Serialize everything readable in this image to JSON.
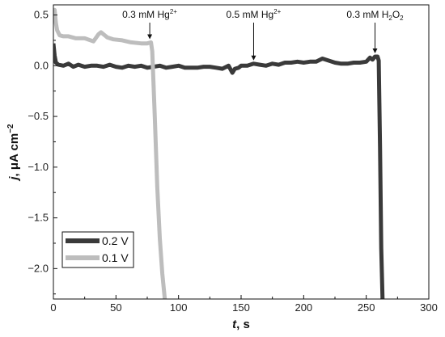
{
  "chart_data": {
    "type": "line",
    "xlabel": {
      "var": "t",
      "unit": ", s"
    },
    "ylabel": {
      "var": "j",
      "unit": ", μA cm",
      "sup": "−2"
    },
    "xlim": [
      0,
      300
    ],
    "ylim": [
      -2.3,
      0.6
    ],
    "xticks": [
      0,
      50,
      100,
      150,
      200,
      250,
      300
    ],
    "yticks": [
      0.5,
      0.0,
      -0.5,
      -1.0,
      -1.5,
      -2.0
    ],
    "ytick_labels": [
      "0.5",
      "0.0",
      "−0.5",
      "−1.0",
      "−1.5",
      "−2.0"
    ],
    "grid": false,
    "legend_position": "bottom-left",
    "annotations": [
      {
        "label": "0.3 mM Hg",
        "sup": "2+",
        "sub": "",
        "rest": "",
        "x": 77,
        "y": 0.23
      },
      {
        "label": "0.5 mM Hg",
        "sup": "2+",
        "sub": "",
        "rest": "",
        "x": 160,
        "y": 0.02
      },
      {
        "label": "0.3 mM H",
        "sup": "",
        "sub": "2",
        "rest": "O",
        "sub2": "2",
        "x": 257,
        "y": 0.09
      }
    ],
    "series": [
      {
        "name": "0.2 V",
        "color": "#3a3a3a",
        "x": [
          0,
          1,
          2,
          4,
          8,
          12,
          16,
          20,
          25,
          30,
          35,
          40,
          45,
          50,
          55,
          60,
          65,
          70,
          75,
          80,
          85,
          90,
          95,
          100,
          105,
          110,
          115,
          120,
          125,
          130,
          135,
          140,
          143,
          145,
          148,
          150,
          155,
          160,
          165,
          170,
          175,
          180,
          185,
          190,
          195,
          200,
          205,
          210,
          215,
          220,
          225,
          230,
          235,
          240,
          245,
          250,
          253,
          255,
          257,
          259,
          260,
          261,
          262,
          263
        ],
        "y": [
          0.22,
          0.1,
          0.03,
          0.01,
          0.0,
          0.02,
          -0.01,
          0.01,
          -0.01,
          0.0,
          0.0,
          -0.01,
          0.01,
          -0.01,
          -0.02,
          0.0,
          -0.01,
          0.0,
          -0.02,
          -0.01,
          0.0,
          -0.02,
          -0.01,
          0.0,
          -0.02,
          -0.02,
          -0.02,
          -0.01,
          -0.01,
          -0.02,
          -0.03,
          0.0,
          -0.07,
          -0.03,
          -0.02,
          0.0,
          0.0,
          0.02,
          0.01,
          0.0,
          0.02,
          0.01,
          0.03,
          0.03,
          0.04,
          0.03,
          0.04,
          0.04,
          0.07,
          0.05,
          0.03,
          0.02,
          0.02,
          0.03,
          0.03,
          0.04,
          0.08,
          0.06,
          0.09,
          0.09,
          0.05,
          -0.8,
          -1.8,
          -2.3
        ]
      },
      {
        "name": "0.1 V",
        "color": "#bdbdbd",
        "x": [
          0,
          1,
          2,
          3,
          5,
          8,
          12,
          18,
          25,
          32,
          36,
          38,
          40,
          43,
          48,
          55,
          62,
          70,
          75,
          78,
          79,
          81,
          83,
          85,
          87,
          89
        ],
        "y": [
          0.48,
          0.55,
          0.42,
          0.35,
          0.3,
          0.29,
          0.29,
          0.27,
          0.27,
          0.24,
          0.31,
          0.33,
          0.31,
          0.28,
          0.26,
          0.25,
          0.23,
          0.22,
          0.22,
          0.23,
          0.14,
          -0.5,
          -1.2,
          -1.7,
          -2.05,
          -2.3
        ]
      }
    ]
  }
}
